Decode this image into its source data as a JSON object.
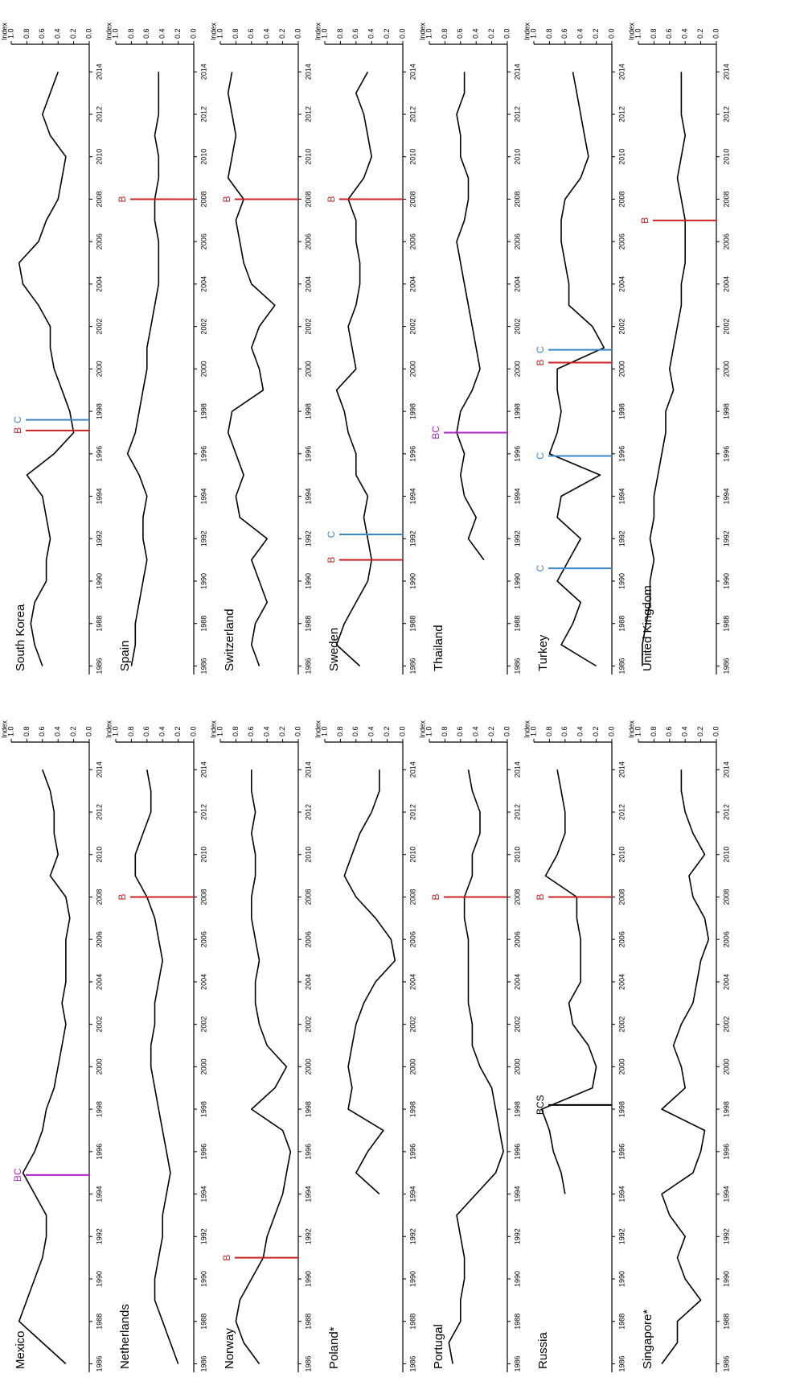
{
  "axes": {
    "xlim": [
      1985.6,
      2015.3
    ],
    "ylim": [
      0,
      1
    ],
    "xticks": [
      1986,
      1988,
      1990,
      1992,
      1994,
      1996,
      1998,
      2000,
      2002,
      2004,
      2006,
      2008,
      2010,
      2012,
      2014
    ],
    "yticks": [
      {
        "value": 1,
        "label": "1.0"
      },
      {
        "value": 0.8,
        "label": "0.8"
      },
      {
        "value": 0.6,
        "label": "0.6"
      },
      {
        "value": 0.4,
        "label": "0.4"
      },
      {
        "value": 0.2,
        "label": "0.2"
      },
      {
        "value": 0,
        "label": "0.0"
      }
    ],
    "ylabel": "Index"
  },
  "chart_data": [
    {
      "type": "line",
      "title": "Mexico",
      "color": "#000000",
      "x": [
        1986,
        1987,
        1988,
        1989,
        1990,
        1991,
        1992,
        1993,
        1994,
        1995,
        1996,
        1997,
        1998,
        1999,
        2000,
        2001,
        2002,
        2003,
        2004,
        2005,
        2006,
        2007,
        2008,
        2009,
        2010,
        2011,
        2012,
        2013,
        2014
      ],
      "values": [
        0.3,
        0.6,
        0.9,
        0.8,
        0.7,
        0.6,
        0.55,
        0.55,
        0.7,
        0.85,
        0.7,
        0.6,
        0.55,
        0.45,
        0.4,
        0.35,
        0.3,
        0.35,
        0.3,
        0.3,
        0.3,
        0.25,
        0.3,
        0.5,
        0.4,
        0.45,
        0.45,
        0.5,
        0.6
      ],
      "events": [
        {
          "x": 1994.9,
          "label": "BC",
          "color": "#b020d0"
        }
      ]
    },
    {
      "type": "line",
      "title": "Netherlands",
      "color": "#000000",
      "x": [
        1986,
        1987,
        1988,
        1989,
        1990,
        1991,
        1992,
        1993,
        1994,
        1995,
        1996,
        1997,
        1998,
        1999,
        2000,
        2001,
        2002,
        2003,
        2004,
        2005,
        2006,
        2007,
        2008,
        2009,
        2010,
        2011,
        2012,
        2013,
        2014
      ],
      "values": [
        0.2,
        0.3,
        0.4,
        0.5,
        0.5,
        0.45,
        0.4,
        0.4,
        0.35,
        0.3,
        0.35,
        0.4,
        0.45,
        0.5,
        0.55,
        0.55,
        0.5,
        0.5,
        0.45,
        0.4,
        0.45,
        0.5,
        0.6,
        0.75,
        0.75,
        0.65,
        0.55,
        0.55,
        0.6
      ],
      "events": [
        {
          "x": 2008,
          "label": "B",
          "color": "#cc2222"
        }
      ]
    },
    {
      "type": "line",
      "title": "Norway",
      "color": "#000000",
      "x": [
        1986,
        1987,
        1988,
        1989,
        1990,
        1991,
        1992,
        1993,
        1994,
        1995,
        1996,
        1997,
        1998,
        1999,
        2000,
        2001,
        2002,
        2003,
        2004,
        2005,
        2006,
        2007,
        2008,
        2009,
        2010,
        2011,
        2012,
        2013,
        2014
      ],
      "values": [
        0.5,
        0.7,
        0.8,
        0.75,
        0.6,
        0.45,
        0.4,
        0.3,
        0.2,
        0.15,
        0.1,
        0.2,
        0.6,
        0.3,
        0.15,
        0.4,
        0.5,
        0.55,
        0.55,
        0.5,
        0.55,
        0.6,
        0.6,
        0.55,
        0.55,
        0.6,
        0.55,
        0.6,
        0.6
      ],
      "events": [
        {
          "x": 1991,
          "label": "B",
          "color": "#cc2222"
        }
      ]
    },
    {
      "type": "line",
      "title": "Poland*",
      "color": "#000000",
      "x": [
        1986,
        1987,
        1988,
        1989,
        1990,
        1991,
        1992,
        1993,
        1994,
        1995,
        1996,
        1997,
        1998,
        1999,
        2000,
        2001,
        2002,
        2003,
        2004,
        2005,
        2006,
        2007,
        2008,
        2009,
        2010,
        2011,
        2012,
        2013,
        2014
      ],
      "values": [
        null,
        null,
        null,
        null,
        null,
        null,
        null,
        null,
        0.3,
        0.6,
        0.45,
        0.25,
        0.7,
        0.65,
        0.7,
        0.65,
        0.6,
        0.5,
        0.35,
        0.1,
        0.15,
        0.35,
        0.6,
        0.75,
        0.65,
        0.55,
        0.4,
        0.3,
        0.3
      ],
      "events": []
    },
    {
      "type": "line",
      "title": "Portugal",
      "color": "#000000",
      "x": [
        1986,
        1987,
        1988,
        1989,
        1990,
        1991,
        1992,
        1993,
        1994,
        1995,
        1996,
        1997,
        1998,
        1999,
        2000,
        2001,
        2002,
        2003,
        2004,
        2005,
        2006,
        2007,
        2008,
        2009,
        2010,
        2011,
        2012,
        2013,
        2014
      ],
      "values": [
        0.7,
        0.75,
        0.6,
        0.6,
        0.55,
        0.55,
        0.6,
        0.65,
        0.4,
        0.15,
        0.05,
        0.1,
        0.15,
        0.2,
        0.35,
        0.45,
        0.45,
        0.5,
        0.5,
        0.5,
        0.5,
        0.55,
        0.55,
        0.45,
        0.45,
        0.35,
        0.35,
        0.45,
        0.5
      ],
      "events": [
        {
          "x": 2008,
          "label": "B",
          "color": "#cc2222"
        }
      ]
    },
    {
      "type": "line",
      "title": "Russia",
      "color": "#000000",
      "x": [
        1986,
        1987,
        1988,
        1989,
        1990,
        1991,
        1992,
        1993,
        1994,
        1995,
        1996,
        1997,
        1998,
        1999,
        2000,
        2001,
        2002,
        2003,
        2004,
        2005,
        2006,
        2007,
        2008,
        2009,
        2010,
        2011,
        2012,
        2013,
        2014
      ],
      "values": [
        null,
        null,
        null,
        null,
        null,
        null,
        null,
        null,
        0.6,
        0.65,
        0.75,
        0.8,
        0.9,
        0.25,
        0.2,
        0.3,
        0.5,
        0.55,
        0.4,
        0.4,
        0.4,
        0.45,
        0.45,
        0.85,
        0.7,
        0.6,
        0.6,
        0.65,
        0.7
      ],
      "events": [
        {
          "x": 1998.2,
          "label": "BCS",
          "color": "#000000"
        },
        {
          "x": 2008,
          "label": "B",
          "color": "#cc2222"
        }
      ]
    },
    {
      "type": "line",
      "title": "Singapore*",
      "color": "#000000",
      "x": [
        1986,
        1987,
        1988,
        1989,
        1990,
        1991,
        1992,
        1993,
        1994,
        1995,
        1996,
        1997,
        1998,
        1999,
        2000,
        2001,
        2002,
        2003,
        2004,
        2005,
        2006,
        2007,
        2008,
        2009,
        2010,
        2011,
        2012,
        2013,
        2014
      ],
      "values": [
        0.7,
        0.5,
        0.5,
        0.2,
        0.4,
        0.5,
        0.4,
        0.6,
        0.7,
        0.3,
        0.2,
        0.15,
        0.7,
        0.4,
        0.45,
        0.55,
        0.45,
        0.3,
        0.25,
        0.2,
        0.1,
        0.15,
        0.3,
        0.35,
        0.15,
        0.3,
        0.4,
        0.45,
        0.45
      ],
      "events": []
    },
    {
      "type": "line",
      "title": "South Korea",
      "color": "#000000",
      "x": [
        1986,
        1987,
        1988,
        1989,
        1990,
        1991,
        1992,
        1993,
        1994,
        1995,
        1996,
        1997,
        1998,
        1999,
        2000,
        2001,
        2002,
        2003,
        2004,
        2005,
        2006,
        2007,
        2008,
        2009,
        2010,
        2011,
        2012,
        2013,
        2014
      ],
      "values": [
        0.6,
        0.7,
        0.75,
        0.7,
        0.55,
        0.55,
        0.5,
        0.55,
        0.6,
        0.8,
        0.45,
        0.2,
        0.25,
        0.35,
        0.45,
        0.5,
        0.5,
        0.65,
        0.85,
        0.9,
        0.65,
        0.55,
        0.4,
        0.35,
        0.3,
        0.5,
        0.6,
        0.5,
        0.4
      ],
      "events": [
        {
          "x": 1997.1,
          "label": "B",
          "color": "#cc2222"
        },
        {
          "x": 1997.6,
          "label": "C",
          "color": "#3a86c8"
        }
      ]
    },
    {
      "type": "line",
      "title": "Spain",
      "color": "#000000",
      "x": [
        1986,
        1987,
        1988,
        1989,
        1990,
        1991,
        1992,
        1993,
        1994,
        1995,
        1996,
        1997,
        1998,
        1999,
        2000,
        2001,
        2002,
        2003,
        2004,
        2005,
        2006,
        2007,
        2008,
        2009,
        2010,
        2011,
        2012,
        2013,
        2014
      ],
      "values": [
        0.8,
        0.75,
        0.75,
        0.7,
        0.65,
        0.6,
        0.65,
        0.65,
        0.6,
        0.7,
        0.85,
        0.75,
        0.7,
        0.65,
        0.6,
        0.6,
        0.55,
        0.5,
        0.45,
        0.45,
        0.45,
        0.5,
        0.5,
        0.45,
        0.45,
        0.5,
        0.45,
        0.45,
        0.45
      ],
      "events": [
        {
          "x": 2008,
          "label": "B",
          "color": "#cc2222"
        }
      ]
    },
    {
      "type": "line",
      "title": "Switzerland",
      "color": "#000000",
      "x": [
        1986,
        1987,
        1988,
        1989,
        1990,
        1991,
        1992,
        1993,
        1994,
        1995,
        1996,
        1997,
        1998,
        1999,
        2000,
        2001,
        2002,
        2003,
        2004,
        2005,
        2006,
        2007,
        2008,
        2009,
        2010,
        2011,
        2012,
        2013,
        2014
      ],
      "values": [
        0.5,
        0.6,
        0.55,
        0.4,
        0.5,
        0.6,
        0.4,
        0.75,
        0.8,
        0.7,
        0.8,
        0.9,
        0.85,
        0.45,
        0.5,
        0.6,
        0.5,
        0.3,
        0.6,
        0.7,
        0.75,
        0.8,
        0.7,
        0.9,
        0.85,
        0.8,
        0.85,
        0.9,
        0.85
      ],
      "events": [
        {
          "x": 2008,
          "label": "B",
          "color": "#cc2222"
        }
      ]
    },
    {
      "type": "line",
      "title": "Sweden",
      "color": "#000000",
      "x": [
        1986,
        1987,
        1988,
        1989,
        1990,
        1991,
        1992,
        1993,
        1994,
        1995,
        1996,
        1997,
        1998,
        1999,
        2000,
        2001,
        2002,
        2003,
        2004,
        2005,
        2006,
        2007,
        2008,
        2009,
        2010,
        2011,
        2012,
        2013,
        2014
      ],
      "values": [
        0.55,
        0.85,
        0.75,
        0.6,
        0.45,
        0.4,
        0.45,
        0.5,
        0.45,
        0.6,
        0.6,
        0.7,
        0.75,
        0.85,
        0.6,
        0.65,
        0.7,
        0.6,
        0.55,
        0.55,
        0.6,
        0.6,
        0.7,
        0.5,
        0.4,
        0.45,
        0.5,
        0.6,
        0.45
      ],
      "events": [
        {
          "x": 1991,
          "label": "B",
          "color": "#cc2222"
        },
        {
          "x": 1992.2,
          "label": "C",
          "color": "#3a86c8"
        },
        {
          "x": 2008,
          "label": "B",
          "color": "#cc2222"
        }
      ]
    },
    {
      "type": "line",
      "title": "Thailand",
      "color": "#000000",
      "x": [
        1986,
        1987,
        1988,
        1989,
        1990,
        1991,
        1992,
        1993,
        1994,
        1995,
        1996,
        1997,
        1998,
        1999,
        2000,
        2001,
        2002,
        2003,
        2004,
        2005,
        2006,
        2007,
        2008,
        2009,
        2010,
        2011,
        2012,
        2013,
        2014
      ],
      "values": [
        null,
        null,
        null,
        null,
        null,
        0.3,
        0.5,
        0.4,
        0.55,
        0.6,
        0.55,
        0.65,
        0.6,
        0.45,
        0.35,
        0.4,
        0.45,
        0.5,
        0.55,
        0.6,
        0.65,
        0.55,
        0.5,
        0.5,
        0.6,
        0.6,
        0.65,
        0.55,
        0.55
      ],
      "events": [
        {
          "x": 1997,
          "label": "BC",
          "color": "#b020d0"
        }
      ]
    },
    {
      "type": "line",
      "title": "Turkey",
      "color": "#000000",
      "x": [
        1986,
        1987,
        1988,
        1989,
        1990,
        1991,
        1992,
        1993,
        1994,
        1995,
        1996,
        1997,
        1998,
        1999,
        2000,
        2001,
        2002,
        2003,
        2004,
        2005,
        2006,
        2007,
        2008,
        2009,
        2010,
        2011,
        2012,
        2013,
        2014
      ],
      "values": [
        0.2,
        0.65,
        0.5,
        0.4,
        0.7,
        0.55,
        0.4,
        0.7,
        0.65,
        0.15,
        0.8,
        0.7,
        0.65,
        0.7,
        0.7,
        0.1,
        0.25,
        0.55,
        0.55,
        0.6,
        0.65,
        0.65,
        0.6,
        0.4,
        0.3,
        0.35,
        0.4,
        0.45,
        0.5
      ],
      "events": [
        {
          "x": 1990.6,
          "label": "C",
          "color": "#3a86c8"
        },
        {
          "x": 1995.9,
          "label": "C",
          "color": "#3a86c8"
        },
        {
          "x": 2000.3,
          "label": "B",
          "color": "#cc2222"
        },
        {
          "x": 2000.9,
          "label": "C",
          "color": "#3a86c8"
        }
      ]
    },
    {
      "type": "line",
      "title": "United Kingdom",
      "color": "#000000",
      "x": [
        1986,
        1987,
        1988,
        1989,
        1990,
        1991,
        1992,
        1993,
        1994,
        1995,
        1996,
        1997,
        1998,
        1999,
        2000,
        2001,
        2002,
        2003,
        2004,
        2005,
        2006,
        2007,
        2008,
        2009,
        2010,
        2011,
        2012,
        2013,
        2014
      ],
      "values": [
        0.95,
        0.95,
        0.9,
        0.85,
        0.85,
        0.8,
        0.85,
        0.8,
        0.8,
        0.75,
        0.7,
        0.65,
        0.65,
        0.55,
        0.6,
        0.55,
        0.5,
        0.45,
        0.45,
        0.4,
        0.4,
        0.4,
        0.45,
        0.5,
        0.45,
        0.4,
        0.45,
        0.45,
        0.45
      ],
      "events": [
        {
          "x": 2007,
          "label": "B",
          "color": "#cc2222"
        }
      ]
    }
  ]
}
